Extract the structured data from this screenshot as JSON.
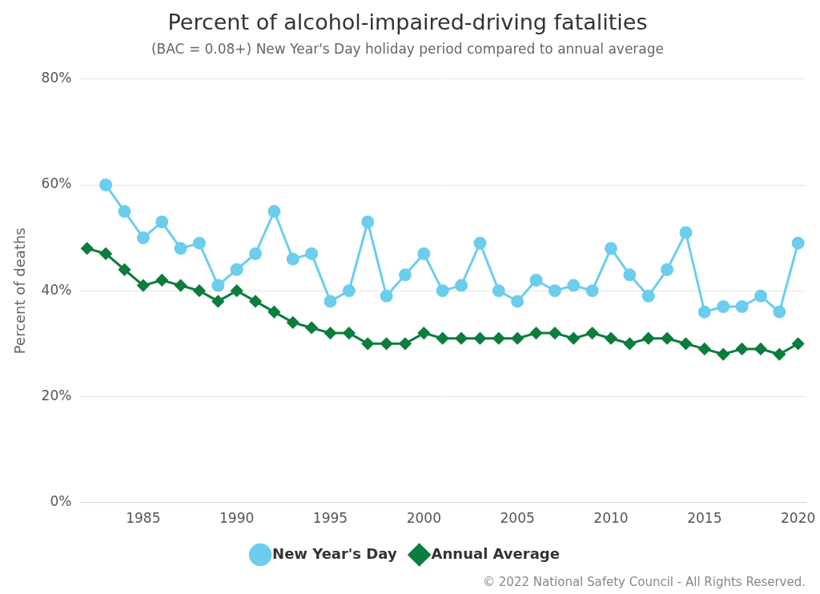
{
  "chart_data": {
    "type": "line",
    "title": "Percent of alcohol-impaired-driving fatalities",
    "subtitle": "(BAC = 0.08+) New Year's Day holiday period compared to annual average",
    "y_label": "Percent of deaths",
    "source": "© 2022 National Safety Council - All Rights Reserved.",
    "x": [
      1982,
      1983,
      1984,
      1985,
      1986,
      1987,
      1988,
      1989,
      1990,
      1991,
      1992,
      1993,
      1994,
      1995,
      1996,
      1997,
      1998,
      1999,
      2000,
      2001,
      2002,
      2003,
      2004,
      2005,
      2006,
      2007,
      2008,
      2009,
      2010,
      2011,
      2012,
      2013,
      2014,
      2015,
      2016,
      2017,
      2018,
      2019,
      2020
    ],
    "series": [
      {
        "name": "New Year's Day",
        "color": "#6ccdee",
        "marker": "circle",
        "values": [
          null,
          60,
          55,
          50,
          53,
          48,
          49,
          41,
          44,
          47,
          55,
          46,
          47,
          38,
          40,
          53,
          39,
          43,
          47,
          40,
          41,
          49,
          40,
          38,
          42,
          40,
          41,
          40,
          48,
          43,
          39,
          44,
          51,
          36,
          37,
          37,
          39,
          36,
          49
        ]
      },
      {
        "name": "Annual Average",
        "color": "#0b7d3e",
        "marker": "diamond",
        "values": [
          48,
          47,
          44,
          41,
          42,
          41,
          40,
          38,
          40,
          38,
          36,
          34,
          33,
          32,
          32,
          30,
          30,
          30,
          32,
          31,
          31,
          31,
          31,
          31,
          32,
          32,
          31,
          32,
          31,
          30,
          31,
          31,
          30,
          29,
          28,
          29,
          29,
          28,
          30
        ]
      }
    ],
    "xlim": [
      1981.6,
      2020.4
    ],
    "xticks": [
      1985,
      1990,
      1995,
      2000,
      2005,
      2010,
      2015,
      2020
    ],
    "ylim": [
      0,
      80
    ],
    "yticks": [
      {
        "value": 0,
        "label": "0%"
      },
      {
        "value": 20,
        "label": "20%"
      },
      {
        "value": 40,
        "label": "40%"
      },
      {
        "value": 60,
        "label": "60%"
      },
      {
        "value": 80,
        "label": "80%"
      }
    ],
    "grid": "y",
    "legend": "bottom"
  }
}
